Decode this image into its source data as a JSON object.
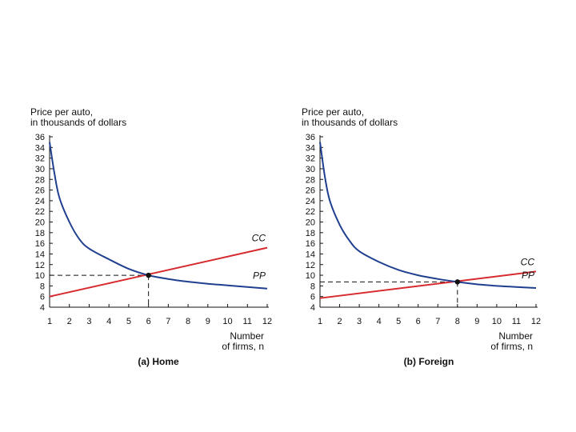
{
  "chart_data": [
    {
      "type": "line",
      "title": "(a) Home",
      "ylabel_lines": [
        "Price per auto,",
        "in thousands of dollars"
      ],
      "xlabel_lines": [
        "Number",
        "of firms, n"
      ],
      "x_ticks": [
        1,
        2,
        3,
        4,
        5,
        6,
        7,
        8,
        9,
        10,
        11,
        12
      ],
      "y_ticks": [
        4,
        6,
        8,
        10,
        12,
        14,
        16,
        18,
        20,
        22,
        24,
        26,
        28,
        30,
        32,
        34,
        36
      ],
      "xlim": [
        1,
        12
      ],
      "ylim": [
        4,
        36
      ],
      "colors": {
        "cc": "#d62a2f",
        "pp": "#1f3f8f",
        "axis": "#111111",
        "guide": "#111111"
      },
      "series": [
        {
          "name": "CC",
          "kind": "line",
          "x": [
            1,
            12
          ],
          "y": [
            6,
            15.17
          ]
        },
        {
          "name": "PP",
          "kind": "curve",
          "x": [
            1,
            1.25,
            1.5,
            2,
            2.5,
            3,
            4,
            5,
            6,
            7,
            8,
            9,
            10,
            11,
            12
          ],
          "y": [
            35,
            29,
            24.5,
            20,
            16.8,
            15,
            13,
            11.2,
            10,
            9.3,
            8.8,
            8.4,
            8.1,
            7.8,
            7.5
          ]
        }
      ],
      "equilibrium": {
        "x": 6,
        "y": 10
      }
    },
    {
      "type": "line",
      "title": "(b) Foreign",
      "ylabel_lines": [
        "Price per auto,",
        "in thousands of dollars"
      ],
      "xlabel_lines": [
        "Number",
        "of firms, n"
      ],
      "x_ticks": [
        1,
        2,
        3,
        4,
        5,
        6,
        7,
        8,
        9,
        10,
        11,
        12
      ],
      "y_ticks": [
        4,
        6,
        8,
        10,
        12,
        14,
        16,
        18,
        20,
        22,
        24,
        26,
        28,
        30,
        32,
        34,
        36
      ],
      "xlim": [
        1,
        12
      ],
      "ylim": [
        4,
        36
      ],
      "colors": {
        "cc": "#d62a2f",
        "pp": "#1f3f8f",
        "axis": "#111111",
        "guide": "#111111"
      },
      "series": [
        {
          "name": "CC",
          "kind": "line",
          "x": [
            1,
            12
          ],
          "y": [
            5.7,
            10.7
          ]
        },
        {
          "name": "PP",
          "kind": "curve",
          "x": [
            1,
            1.25,
            1.5,
            2,
            2.5,
            3,
            4,
            5,
            6,
            7,
            8,
            9,
            10,
            11,
            12
          ],
          "y": [
            35,
            28.5,
            24,
            19.5,
            16.5,
            14.5,
            12.5,
            11,
            10,
            9.3,
            8.75,
            8.3,
            8,
            7.8,
            7.6
          ]
        }
      ],
      "equilibrium": {
        "x": 8,
        "y": 8.75
      }
    }
  ]
}
